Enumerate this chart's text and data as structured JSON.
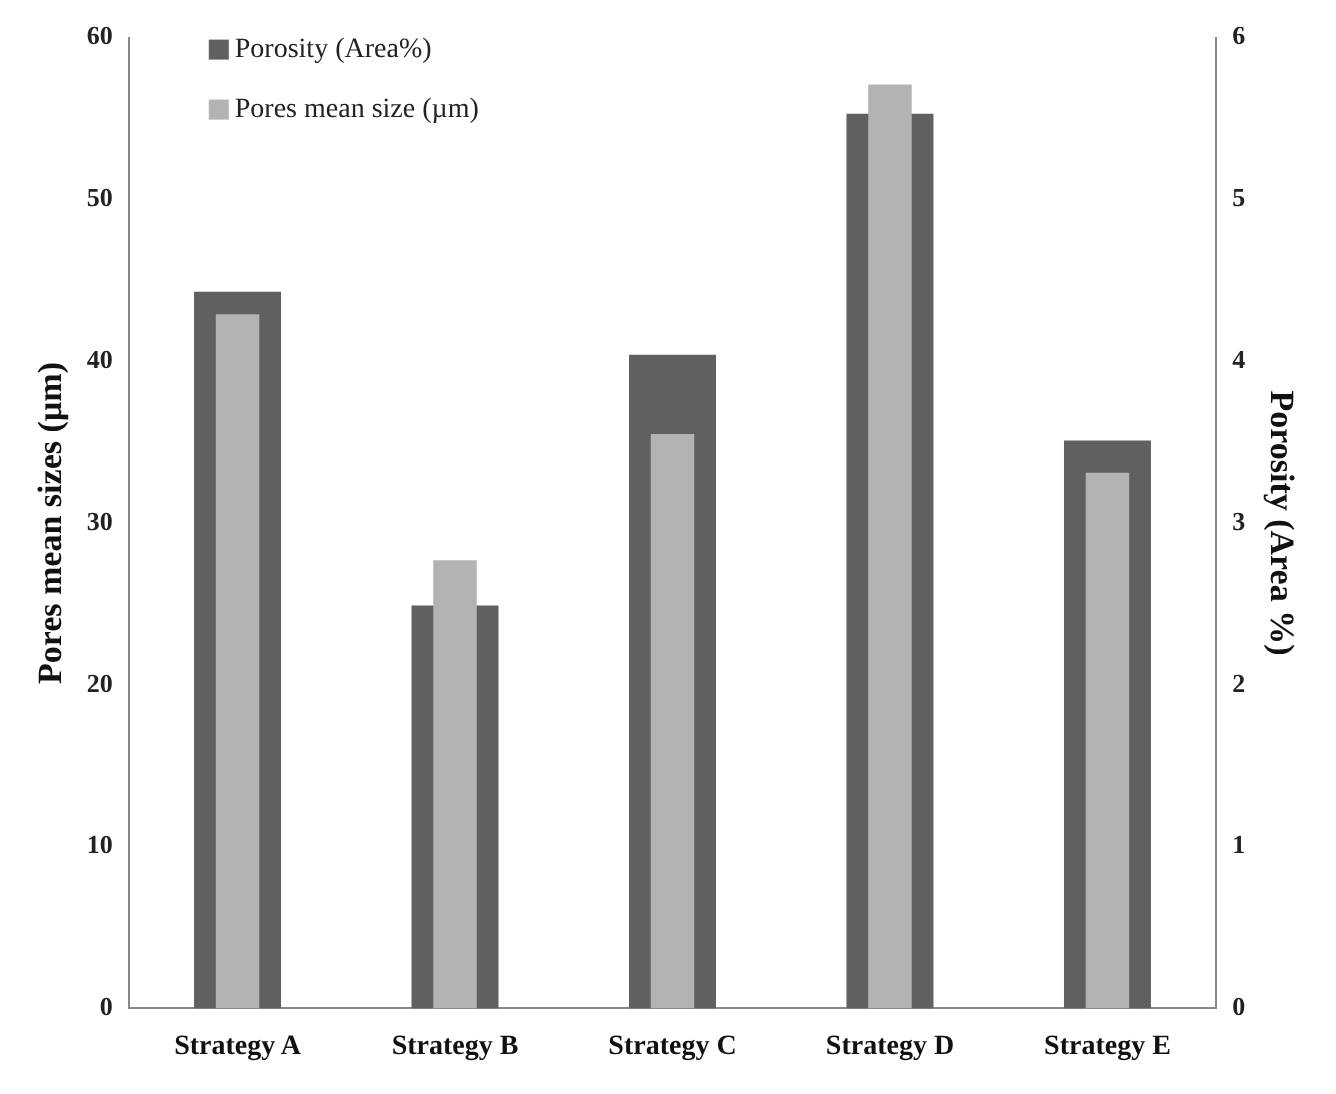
{
  "chart_data": {
    "type": "bar",
    "categories": [
      "Strategy A",
      "Strategy B",
      "Strategy C",
      "Strategy D",
      "Strategy E"
    ],
    "ylabel": "Pores mean sizes (µm)",
    "y2label": "Porosity (Area %)",
    "series": [
      {
        "name": "Porosity (Area%)",
        "color": "#606060",
        "axis": "y2",
        "values": [
          4.43,
          2.49,
          4.04,
          5.53,
          3.51
        ]
      },
      {
        "name": "Pores mean size (µm)",
        "color": "#b3b3b3",
        "values": [
          42.9,
          27.7,
          35.5,
          57.1,
          33.1
        ]
      }
    ],
    "ylim": [
      0,
      60
    ],
    "yticks": [
      0,
      10,
      20,
      30,
      40,
      50,
      60
    ],
    "y2lim": [
      0,
      6
    ],
    "y2ticks": [
      0,
      1,
      2,
      3,
      4,
      5,
      6
    ],
    "grid": false,
    "legend": "top left"
  }
}
